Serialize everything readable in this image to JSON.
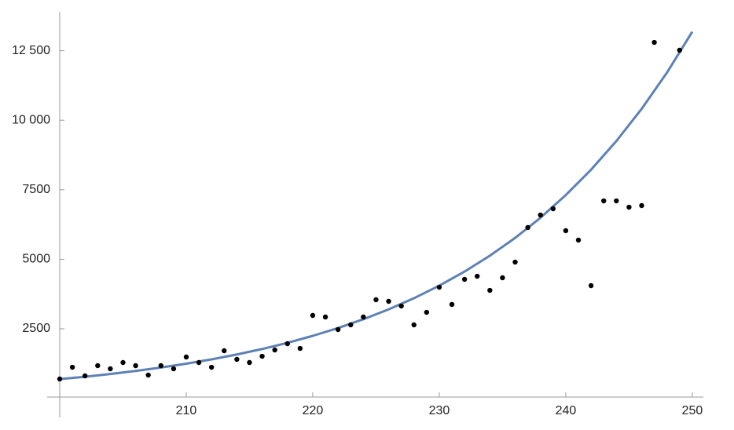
{
  "chart_data": {
    "type": "scatter",
    "points": {
      "color": "#000000",
      "x": [
        200,
        201,
        202,
        203,
        204,
        205,
        206,
        207,
        208,
        209,
        210,
        211,
        212,
        213,
        214,
        215,
        216,
        217,
        218,
        219,
        220,
        221,
        222,
        223,
        224,
        225,
        226,
        227,
        228,
        229,
        230,
        231,
        232,
        233,
        234,
        235,
        236,
        237,
        238,
        239,
        240,
        241,
        242,
        243,
        244,
        245,
        246,
        247,
        249
      ],
      "values": [
        694,
        1117,
        807,
        1174,
        1061,
        1287,
        1174,
        835,
        1174,
        1061,
        1484,
        1287,
        1117,
        1710,
        1400,
        1287,
        1512,
        1738,
        1964,
        1794,
        2980,
        2923,
        2472,
        2641,
        2923,
        3544,
        3488,
        3318,
        2641,
        3092,
        3995,
        3375,
        4278,
        4390,
        3882,
        4334,
        4898,
        6140,
        6591,
        6817,
        6027,
        5689,
        4052,
        7099,
        7099,
        6873,
        6930,
        12799,
        12517
      ]
    },
    "curve": {
      "color": "#5e81b5",
      "x": [
        200,
        202,
        204,
        206,
        208,
        210,
        212,
        214,
        216,
        218,
        220,
        222,
        224,
        226,
        228,
        230,
        232,
        234,
        236,
        238,
        240,
        242,
        244,
        246,
        248,
        250
      ],
      "values": [
        690,
        776,
        874,
        983,
        1106,
        1245,
        1400,
        1576,
        1773,
        1995,
        2246,
        2526,
        2843,
        3199,
        3599,
        4051,
        4557,
        5127,
        5769,
        6492,
        7308,
        8221,
        9251,
        10409,
        11712,
        13183
      ]
    },
    "xlim": [
      200,
      251
    ],
    "ylim": [
      0,
      13900
    ],
    "xticks": [
      210,
      220,
      230,
      240,
      250
    ],
    "yticks": [
      2500,
      5000,
      7500,
      {
        "value": 10000,
        "label": "10 000"
      },
      {
        "value": 12500,
        "label": "12 500"
      }
    ]
  }
}
